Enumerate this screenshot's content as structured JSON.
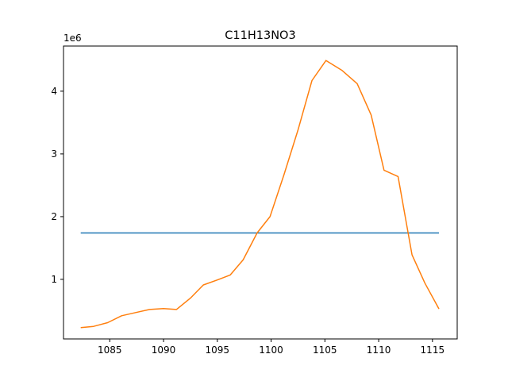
{
  "chart_data": {
    "type": "line",
    "title": "C11H13NO3",
    "xlabel": "",
    "ylabel": "",
    "y_offset_label": "1e6",
    "xlim": [
      1080.7,
      1117.3
    ],
    "ylim": [
      50000,
      4720000
    ],
    "x_ticks": [
      1085,
      1090,
      1095,
      1100,
      1105,
      1110,
      1115
    ],
    "y_ticks": [
      1000000,
      2000000,
      3000000,
      4000000
    ],
    "y_tick_labels": [
      "1",
      "2",
      "3",
      "4"
    ],
    "grid": false,
    "series": [
      {
        "color": "#1f77b4",
        "x": [
          1082.3,
          1115.6
        ],
        "y": [
          1740000,
          1740000
        ]
      },
      {
        "color": "#ff7f0e",
        "x": [
          1082.3,
          1083.5,
          1084.8,
          1086.1,
          1087.4,
          1088.7,
          1090.0,
          1091.2,
          1092.5,
          1093.7,
          1095.0,
          1096.2,
          1097.4,
          1098.7,
          1099.9,
          1101.2,
          1102.5,
          1103.8,
          1105.1,
          1106.6,
          1108.0,
          1109.3,
          1110.5,
          1111.8,
          1113.1,
          1114.3,
          1115.6
        ],
        "y": [
          230000,
          250000,
          310000,
          420000,
          470000,
          520000,
          535000,
          520000,
          700000,
          910000,
          990000,
          1070000,
          1310000,
          1740000,
          2000000,
          2670000,
          3380000,
          4170000,
          4490000,
          4330000,
          4120000,
          3620000,
          2740000,
          2640000,
          1390000,
          940000,
          530000
        ]
      }
    ]
  }
}
